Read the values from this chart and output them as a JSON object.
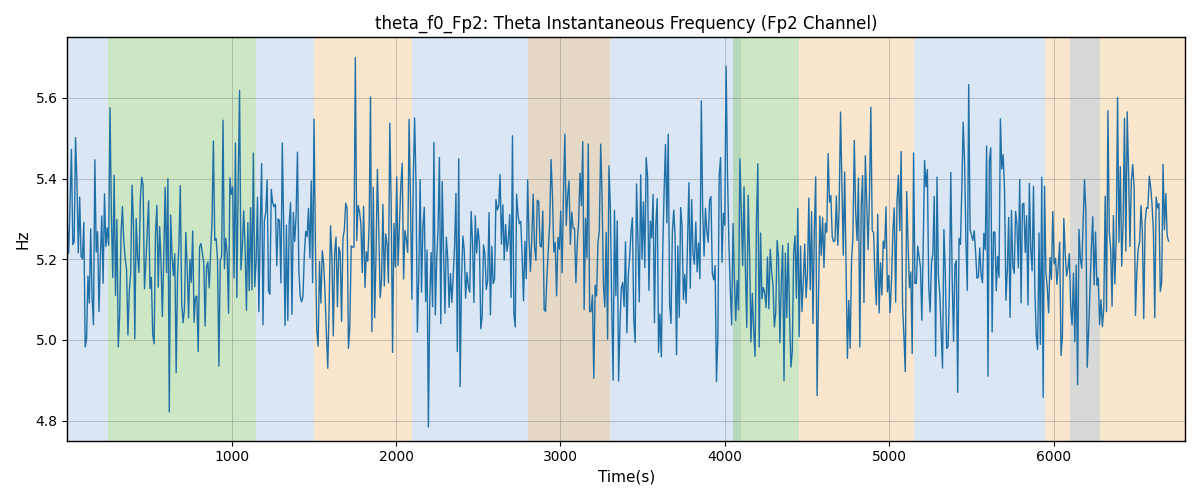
{
  "title": "theta_f0_Fp2: Theta Instantaneous Frequency (Fp2 Channel)",
  "xlabel": "Time(s)",
  "ylabel": "Hz",
  "xlim": [
    0,
    6800
  ],
  "ylim": [
    4.75,
    5.75
  ],
  "yticks": [
    4.8,
    5.0,
    5.2,
    5.4,
    5.6
  ],
  "xticks": [
    1000,
    2000,
    3000,
    4000,
    5000,
    6000
  ],
  "line_color": "#2070a8",
  "line_width": 1.0,
  "bg_bands": [
    {
      "xmin": 0,
      "xmax": 250,
      "color": "#adc8e6"
    },
    {
      "xmin": 250,
      "xmax": 1150,
      "color": "#90c97a"
    },
    {
      "xmin": 1150,
      "xmax": 1500,
      "color": "#adc8e6"
    },
    {
      "xmin": 1500,
      "xmax": 2100,
      "color": "#f5c890"
    },
    {
      "xmin": 2100,
      "xmax": 3850,
      "color": "#adc8e6"
    },
    {
      "xmin": 2800,
      "xmax": 3300,
      "color": "#f5c890"
    },
    {
      "xmin": 3850,
      "xmax": 4100,
      "color": "#adc8e6"
    },
    {
      "xmin": 4050,
      "xmax": 4450,
      "color": "#90c97a"
    },
    {
      "xmin": 4450,
      "xmax": 5150,
      "color": "#f5c890"
    },
    {
      "xmin": 5150,
      "xmax": 5950,
      "color": "#adc8e6"
    },
    {
      "xmin": 5950,
      "xmax": 6800,
      "color": "#f5c890"
    },
    {
      "xmin": 6100,
      "xmax": 6280,
      "color": "#adc8e6"
    }
  ],
  "alpha": 0.45,
  "seed": 42,
  "n_points": 800,
  "x_start": 0,
  "x_end": 6700,
  "base_freq": 5.22,
  "noise_amplitude": 0.14,
  "slow_var_amp": 0.06,
  "slow_var_period": 900,
  "med_var_amp": 0.04,
  "med_var_period": 200
}
